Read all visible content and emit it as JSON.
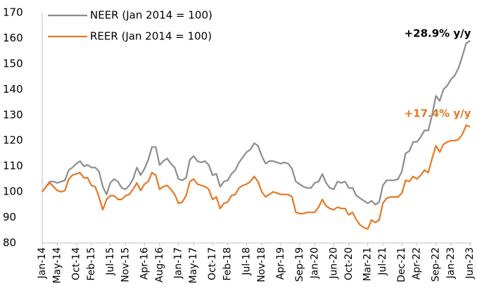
{
  "chart_data": {
    "type": "line",
    "categories": [
      "Jan-14",
      null,
      null,
      null,
      "May-14",
      null,
      null,
      null,
      null,
      "Oct-14",
      null,
      null,
      null,
      "Feb-15",
      null,
      null,
      null,
      null,
      "Jul-15",
      null,
      null,
      null,
      "Nov-15",
      null,
      null,
      null,
      null,
      "Apr-16",
      null,
      null,
      null,
      "Aug-16",
      null,
      null,
      null,
      null,
      "Jan-17",
      null,
      null,
      null,
      "May-17",
      null,
      null,
      null,
      null,
      "Oct-17",
      null,
      null,
      null,
      "Feb-18",
      null,
      null,
      null,
      null,
      "Jul-18",
      null,
      null,
      null,
      "Nov-18",
      null,
      null,
      null,
      null,
      "Apr-19",
      null,
      null,
      null,
      null,
      "Sep-19",
      null,
      null,
      null,
      "Jan-20",
      null,
      null,
      null,
      null,
      "Jun-20",
      null,
      null,
      null,
      "Oct-20",
      null,
      null,
      null,
      null,
      "Mar-21",
      null,
      null,
      null,
      "Jul-21",
      null,
      null,
      null,
      null,
      "Dec-21",
      null,
      null,
      null,
      "Apr-22",
      null,
      null,
      null,
      null,
      "Sep-22",
      null,
      null,
      null,
      "Jan-23",
      null,
      null,
      null,
      null,
      "Jun-23"
    ],
    "series": [
      {
        "name": "NEER (Jan 2014 = 100)",
        "color": "#8c8c8c",
        "values": [
          100,
          102,
          104,
          104,
          103.5,
          104,
          104.5,
          108.5,
          109.5,
          111,
          112,
          110,
          110.5,
          109.5,
          109.5,
          108,
          102,
          99,
          103.5,
          105,
          104,
          101.5,
          101,
          102.5,
          105,
          109.5,
          106.5,
          109,
          112.5,
          117.5,
          117.5,
          110.5,
          112,
          113,
          111,
          109.5,
          105,
          104.5,
          105.5,
          112.5,
          114,
          112,
          111.5,
          112,
          110.5,
          106.5,
          107,
          102,
          104,
          104.5,
          107,
          108.5,
          111.5,
          113.5,
          115.5,
          116.5,
          119,
          118,
          114,
          111,
          112,
          112,
          111.5,
          111,
          111.5,
          111,
          109,
          104,
          103,
          102,
          101.5,
          101.5,
          103.5,
          104,
          107,
          103.5,
          101.5,
          101,
          104,
          103.5,
          104,
          101.5,
          101.5,
          98.5,
          97.5,
          96.5,
          95.5,
          96.5,
          95,
          96,
          102.5,
          104.5,
          104.5,
          104.5,
          105,
          108,
          115,
          116,
          119.5,
          119.5,
          121.5,
          124,
          124,
          130,
          137.5,
          135.5,
          140,
          141.5,
          144,
          145.5,
          148.5,
          153,
          158,
          159
        ]
      },
      {
        "name": "REER (Jan 2014 = 100)",
        "color": "#e87722",
        "values": [
          100,
          102,
          103.5,
          102,
          100.5,
          100,
          100.5,
          105,
          106.5,
          107,
          107.5,
          105.5,
          105.5,
          102.5,
          102,
          98,
          93,
          97,
          98.5,
          98.5,
          97,
          97,
          98.5,
          99,
          101,
          103.5,
          100.5,
          103,
          104,
          107.5,
          106.5,
          101,
          102,
          102.5,
          101,
          99,
          95.5,
          96,
          98.5,
          104,
          105,
          103,
          102.5,
          102,
          101,
          97,
          98,
          93.5,
          95.5,
          96,
          98.5,
          99,
          101.5,
          102.5,
          103,
          104,
          106,
          104,
          100,
          98,
          99,
          100,
          99.5,
          99,
          99,
          99,
          98,
          92,
          91.5,
          91.5,
          92,
          92,
          92,
          94,
          97,
          94.5,
          93.5,
          93,
          94,
          93.5,
          93.5,
          91,
          92,
          89,
          87,
          86,
          85.5,
          89,
          88,
          89,
          95.5,
          97.5,
          98,
          98,
          98,
          99.5,
          104.5,
          104,
          106,
          105,
          106.5,
          108.5,
          107.5,
          113,
          118,
          115.5,
          118.5,
          119.5,
          120,
          120,
          120.5,
          122.5,
          126,
          125.5
        ]
      }
    ],
    "ylim": [
      80,
      170
    ],
    "yticks": [
      80,
      90,
      100,
      110,
      120,
      130,
      140,
      150,
      160,
      170
    ],
    "grid": false,
    "annotations": [
      "+28.9% y/y",
      "+17.4% y/y"
    ]
  }
}
